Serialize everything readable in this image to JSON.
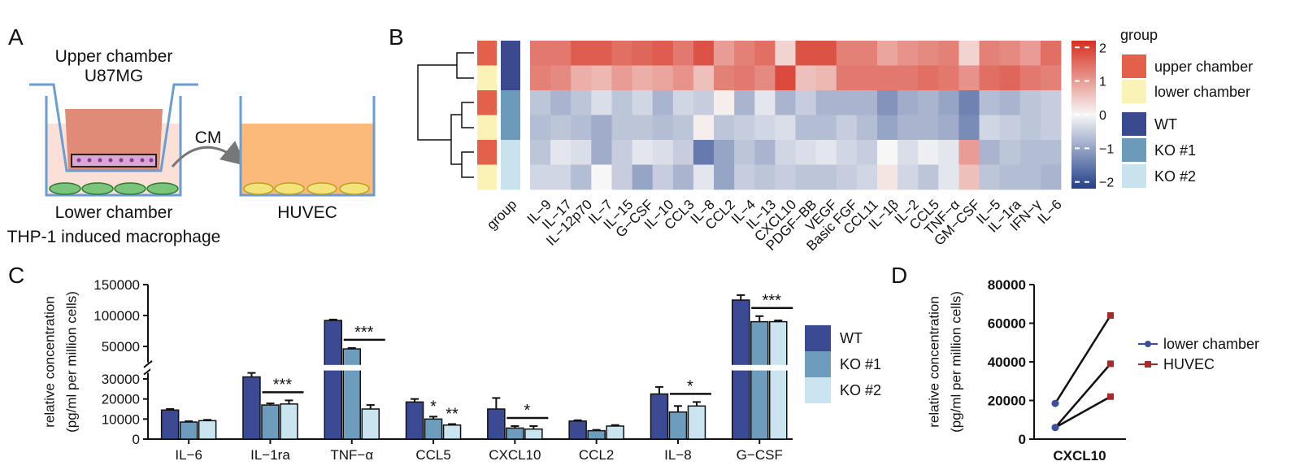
{
  "figure": {
    "panels": [
      "A",
      "B",
      "C",
      "D"
    ],
    "diagram": {
      "upper_label": "Upper chamber",
      "upper_cells": "U87MG",
      "transfer": "CM",
      "lower_label": "Lower chamber",
      "lower_cells": "THP-1 induced macrophage",
      "target_cells": "HUVEC"
    }
  },
  "chart_data": [
    {
      "type": "heatmap",
      "columns": [
        "IL−9",
        "IL−17",
        "IL−12p70",
        "IL−7",
        "IL−15",
        "G−CSF",
        "IL−10",
        "CCL3",
        "IL−8",
        "CCL2",
        "IL−4",
        "IL−13",
        "CXCL10",
        "PDGF−BB",
        "VEGF",
        "Basic FGF",
        "CCL11",
        "IL−1β",
        "IL−2",
        "CCL5",
        "TNF−α",
        "GM−CSF",
        "IL−5",
        "IL−1ra",
        "IFN−γ",
        "IL−6"
      ],
      "values": [
        [
          1.4,
          1.4,
          1.7,
          1.7,
          1.5,
          1.6,
          1.7,
          1.4,
          1.8,
          1.0,
          1.3,
          1.5,
          0.4,
          1.8,
          1.8,
          1.3,
          1.3,
          0.9,
          1.1,
          1.2,
          1.3,
          0.4,
          1.3,
          1.2,
          1.0,
          1.5
        ],
        [
          1.3,
          1.2,
          0.8,
          0.7,
          1.0,
          0.8,
          0.9,
          1.1,
          0.6,
          1.3,
          1.4,
          1.2,
          1.9,
          0.6,
          0.7,
          1.4,
          1.4,
          1.4,
          1.4,
          1.5,
          1.4,
          1.1,
          1.5,
          1.6,
          1.4,
          1.3
        ],
        [
          -0.6,
          -0.8,
          -0.6,
          -0.3,
          -0.6,
          -0.4,
          -0.8,
          -0.4,
          -0.5,
          0.1,
          -0.8,
          -0.2,
          -0.8,
          -0.5,
          -0.8,
          -0.8,
          -0.8,
          -1.2,
          -0.9,
          -0.8,
          -1.0,
          -1.4,
          -0.7,
          -0.8,
          -0.6,
          -0.5
        ],
        [
          -0.7,
          -0.6,
          -0.7,
          -0.9,
          -0.6,
          -0.6,
          -0.7,
          -0.6,
          0.1,
          -0.6,
          -0.5,
          -0.4,
          -0.3,
          -0.7,
          -0.7,
          -0.5,
          -0.7,
          -1.0,
          -0.8,
          -0.8,
          -0.9,
          -1.3,
          -0.4,
          -0.5,
          -0.6,
          -0.5
        ],
        [
          -0.6,
          -0.2,
          -0.3,
          -0.9,
          -0.5,
          -0.2,
          -0.3,
          -0.5,
          -1.5,
          -1.0,
          -0.6,
          -0.8,
          -0.4,
          -0.3,
          -0.2,
          -0.4,
          -0.5,
          0.0,
          -0.3,
          -0.1,
          -0.2,
          1.0,
          -0.8,
          -0.6,
          -0.7,
          -0.7
        ],
        [
          -0.4,
          -0.4,
          -0.7,
          0.0,
          -0.5,
          -1.0,
          -0.5,
          -0.8,
          -0.2,
          -1.0,
          -0.5,
          -0.6,
          -0.5,
          -0.6,
          -0.6,
          -0.5,
          -0.4,
          0.2,
          -0.4,
          -0.6,
          -0.2,
          0.6,
          -0.6,
          -0.7,
          -0.7,
          -0.8
        ]
      ],
      "annotation_label": "group",
      "legend_title": "group",
      "groups": [
        {
          "name": "upper chamber",
          "color": "#e3604a"
        },
        {
          "name": "lower chamber",
          "color": "#fbf2b8"
        }
      ],
      "genotypes": [
        {
          "name": "WT",
          "color": "#3b4a8f"
        },
        {
          "name": "KO #1",
          "color": "#6b9bb8"
        },
        {
          "name": "KO #2",
          "color": "#c8e3ee"
        }
      ],
      "row_group": [
        0,
        1,
        0,
        1,
        0,
        1
      ],
      "row_genotype": [
        0,
        0,
        1,
        1,
        2,
        2
      ],
      "colorscale": [
        "#22408a",
        "#f7f7f7",
        "#d62f1f"
      ],
      "clim": [
        -2.2,
        2.2
      ],
      "cticks": [
        2,
        1,
        0,
        {
          "value": -1,
          "label": "−1"
        },
        {
          "value": -2,
          "label": "−2"
        }
      ]
    },
    {
      "type": "bar",
      "ylabel": [
        "relative concentration",
        "(pg/ml per million cells)"
      ],
      "categories": [
        "IL−6",
        "IL−1ra",
        "TNF−α",
        "CCL5",
        "CXCL10",
        "CCL2",
        "IL−8",
        "G−CSF"
      ],
      "series": [
        {
          "name": "WT",
          "color": "#3b4a93",
          "values": [
            14500,
            31000,
            92000,
            18500,
            15000,
            9000,
            22500,
            125000
          ],
          "errors": [
            500,
            2000,
            1500,
            1500,
            5500,
            400,
            3500,
            8000
          ]
        },
        {
          "name": "KO #1",
          "color": "#6d9cbc",
          "values": [
            8500,
            17000,
            46000,
            10000,
            5500,
            4200,
            13500,
            90000
          ],
          "errors": [
            400,
            800,
            1500,
            1200,
            1000,
            400,
            3000,
            9000
          ]
        },
        {
          "name": "KO #2",
          "color": "#cbe5f0",
          "values": [
            9200,
            17500,
            15000,
            7000,
            5000,
            6500,
            16500,
            90000
          ],
          "errors": [
            400,
            1800,
            2000,
            500,
            1500,
            500,
            2000,
            2000
          ]
        }
      ],
      "significance": [
        null,
        "***",
        "***",
        [
          "*",
          "**"
        ],
        "*",
        null,
        "*",
        "***"
      ],
      "ysegments": [
        [
          0,
          33000
        ],
        [
          24000,
          150000
        ]
      ],
      "yticks": [
        0,
        10000,
        20000,
        30000,
        50000,
        100000,
        150000
      ]
    },
    {
      "type": "paired",
      "ylabel": [
        "relative concentration",
        "(pg/ml per million cells)"
      ],
      "xlabel": "CXCL10",
      "series": [
        {
          "name": "lower chamber",
          "color": "#3a4fa0",
          "values": [
            18500,
            6000,
            6000
          ]
        },
        {
          "name": "HUVEC",
          "color": "#a52a2a",
          "values": [
            64000,
            39000,
            22000
          ]
        }
      ],
      "ylim": [
        0,
        80000
      ],
      "yticks": [
        0,
        20000,
        40000,
        60000,
        80000
      ]
    }
  ]
}
